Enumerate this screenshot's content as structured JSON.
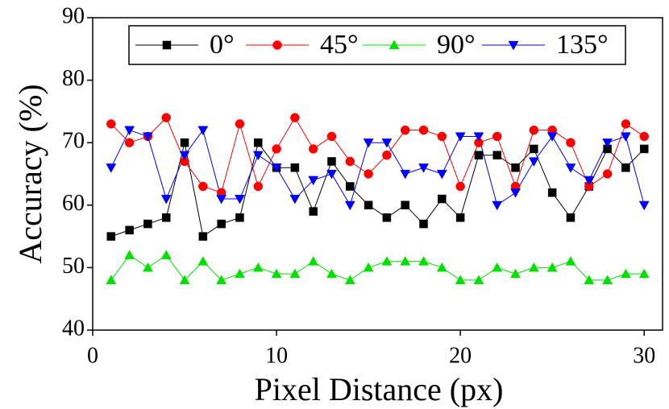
{
  "chart_data": {
    "type": "line",
    "xlabel": "Pixel Distance (px)",
    "ylabel": "Accuracy (%)",
    "x": [
      1,
      2,
      3,
      4,
      5,
      6,
      7,
      8,
      9,
      10,
      11,
      12,
      13,
      14,
      15,
      16,
      17,
      18,
      19,
      20,
      21,
      22,
      23,
      24,
      25,
      26,
      27,
      28,
      29,
      30
    ],
    "series": [
      {
        "name": "0°",
        "color": "#000000",
        "marker": "square",
        "values": [
          55,
          56,
          57,
          58,
          70,
          55,
          57,
          58,
          70,
          66,
          66,
          59,
          67,
          63,
          60,
          58,
          60,
          57,
          61,
          58,
          68,
          68,
          66,
          69,
          62,
          58,
          63,
          69,
          66,
          69
        ]
      },
      {
        "name": "45°",
        "color": "#ff0000",
        "marker": "circle",
        "values": [
          73,
          70,
          71,
          74,
          67,
          63,
          62,
          73,
          63,
          69,
          74,
          69,
          71,
          67,
          65,
          68,
          72,
          72,
          71,
          63,
          70,
          71,
          63,
          72,
          72,
          70,
          63,
          65,
          73,
          71
        ]
      },
      {
        "name": "90°",
        "color": "#00e000",
        "marker": "triangle-up",
        "values": [
          48,
          52,
          50,
          52,
          48,
          51,
          48,
          49,
          50,
          49,
          49,
          51,
          49,
          48,
          50,
          51,
          51,
          51,
          50,
          48,
          48,
          50,
          49,
          50,
          50,
          51,
          48,
          48,
          49,
          49
        ]
      },
      {
        "name": "135°",
        "color": "#0000ff",
        "marker": "triangle-down",
        "values": [
          66,
          72,
          71,
          61,
          68,
          72,
          61,
          61,
          68,
          66,
          61,
          64,
          65,
          60,
          70,
          70,
          65,
          66,
          65,
          71,
          71,
          60,
          62,
          67,
          71,
          66,
          64,
          70,
          71,
          60
        ]
      }
    ],
    "xlim": [
      0,
      31
    ],
    "xticks": [
      0,
      10,
      20,
      30
    ],
    "ylim": [
      40,
      90
    ],
    "yticks": [
      40,
      50,
      60,
      70,
      80,
      90
    ],
    "grid": false,
    "legend_position": "top"
  }
}
